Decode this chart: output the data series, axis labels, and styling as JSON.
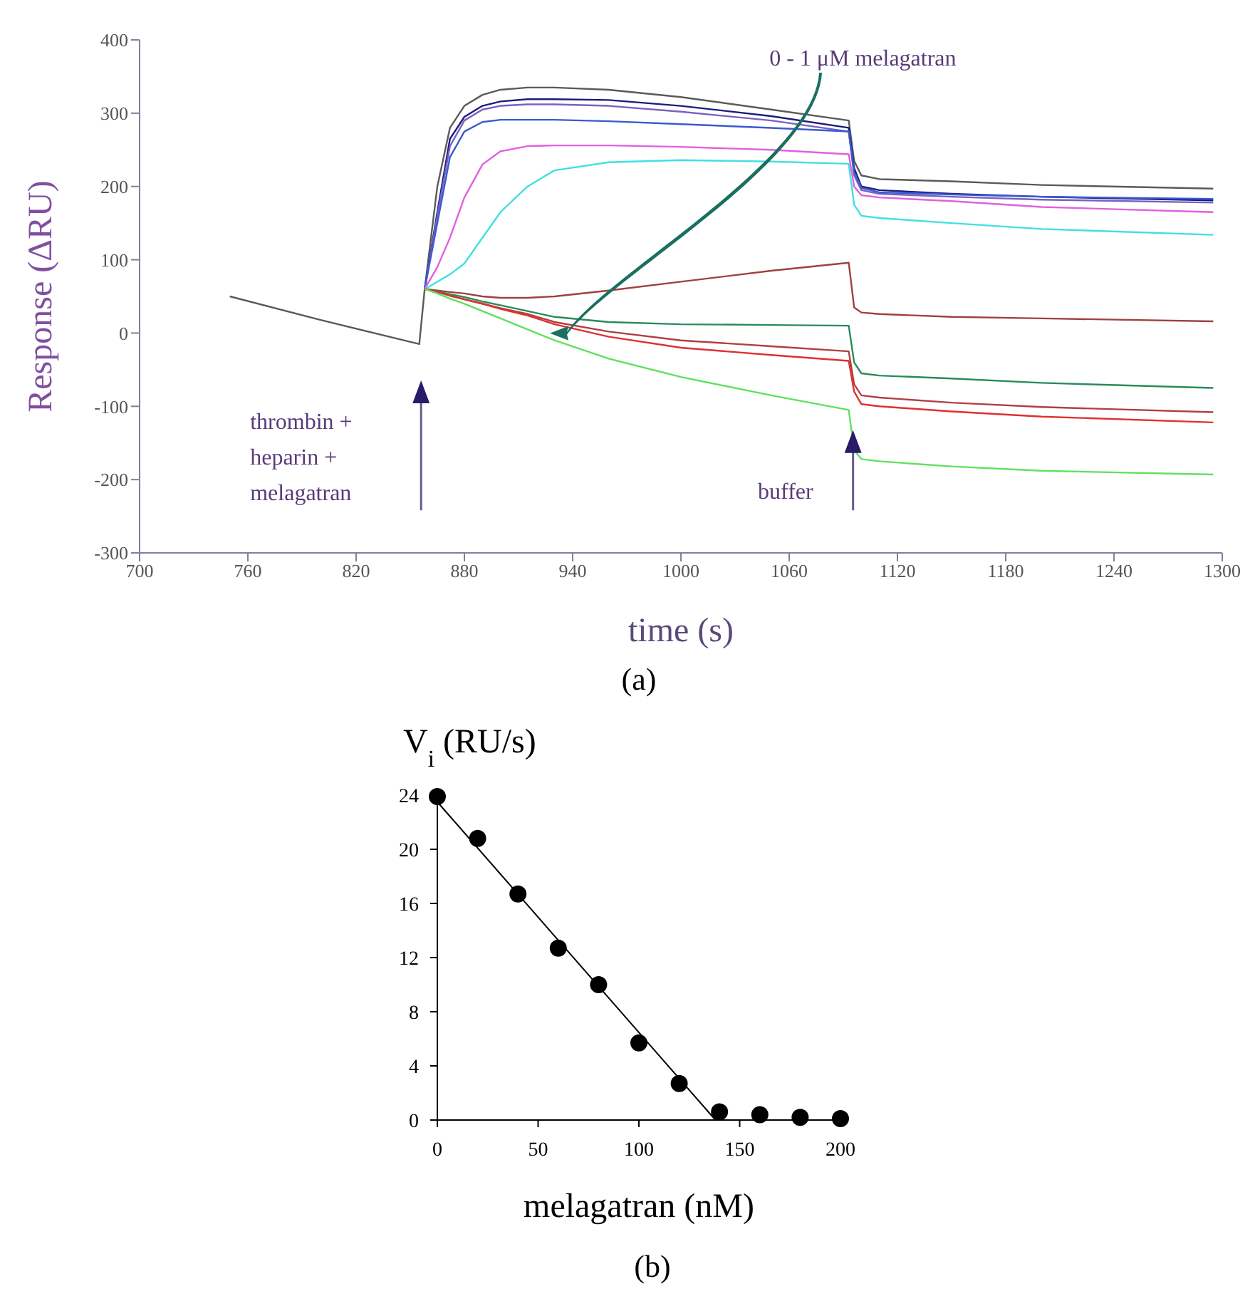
{
  "chart_data": [
    {
      "type": "line",
      "ylabel": "Response (ΔRU)",
      "xlabel": "time (s)",
      "xlim": [
        700,
        1300
      ],
      "xticks": [
        700,
        760,
        820,
        880,
        940,
        1000,
        1060,
        1120,
        1180,
        1240,
        1300
      ],
      "ylim": [
        -300,
        400
      ],
      "yticks": [
        -300,
        -200,
        -100,
        0,
        100,
        200,
        300,
        400
      ],
      "marker": "none",
      "x": [
        750,
        800,
        855,
        858,
        865,
        872,
        880,
        890,
        900,
        915,
        930,
        960,
        1000,
        1050,
        1093,
        1096,
        1100,
        1110,
        1150,
        1200,
        1295
      ],
      "series": [
        {
          "color": "#5a5a5a",
          "values": [
            50,
            18,
            -15,
            60,
            200,
            280,
            310,
            325,
            332,
            335,
            335,
            332,
            322,
            305,
            290,
            235,
            215,
            210,
            207,
            202,
            197
          ]
        },
        {
          "color": "#1a1a80",
          "values": [
            null,
            null,
            null,
            60,
            165,
            265,
            295,
            310,
            316,
            319,
            319,
            318,
            310,
            296,
            280,
            225,
            200,
            195,
            190,
            186,
            181
          ]
        },
        {
          "color": "#7a60c0",
          "values": [
            null,
            null,
            null,
            60,
            160,
            255,
            290,
            305,
            310,
            312,
            312,
            310,
            302,
            290,
            275,
            215,
            195,
            190,
            186,
            182,
            178
          ]
        },
        {
          "color": "#3a5ad0",
          "values": [
            null,
            null,
            null,
            60,
            150,
            240,
            275,
            288,
            291,
            291,
            291,
            289,
            285,
            280,
            275,
            220,
            198,
            192,
            189,
            186,
            183
          ]
        },
        {
          "color": "#e060e0",
          "values": [
            null,
            null,
            null,
            60,
            90,
            130,
            185,
            230,
            248,
            255,
            256,
            256,
            254,
            250,
            244,
            200,
            188,
            185,
            180,
            172,
            165
          ]
        },
        {
          "color": "#40e0e0",
          "values": [
            null,
            null,
            null,
            60,
            70,
            80,
            95,
            130,
            165,
            200,
            222,
            233,
            236,
            234,
            231,
            175,
            160,
            157,
            150,
            142,
            134
          ]
        },
        {
          "color": "#a04040",
          "values": [
            null,
            null,
            null,
            60,
            58,
            56,
            54,
            50,
            48,
            48,
            50,
            58,
            70,
            85,
            96,
            35,
            28,
            26,
            22,
            20,
            16
          ]
        },
        {
          "color": "#2a8a5a",
          "values": [
            null,
            null,
            null,
            60,
            57,
            53,
            49,
            43,
            38,
            30,
            22,
            15,
            12,
            11,
            10,
            -40,
            -55,
            -58,
            -62,
            -68,
            -75
          ]
        },
        {
          "color": "#b04040",
          "values": [
            null,
            null,
            null,
            60,
            56,
            51,
            46,
            40,
            34,
            26,
            15,
            2,
            -10,
            -18,
            -25,
            -70,
            -85,
            -88,
            -95,
            -101,
            -108
          ]
        },
        {
          "color": "#e03030",
          "values": [
            null,
            null,
            null,
            60,
            56,
            51,
            46,
            40,
            33,
            24,
            12,
            -5,
            -20,
            -30,
            -38,
            -80,
            -97,
            -100,
            -107,
            -114,
            -122
          ]
        },
        {
          "color": "#60e060",
          "values": [
            null,
            null,
            null,
            60,
            54,
            47,
            40,
            30,
            20,
            5,
            -10,
            -35,
            -60,
            -85,
            -105,
            -160,
            -172,
            -175,
            -182,
            -188,
            -193
          ]
        }
      ],
      "annotations": [
        "0 - 1 μM  melagatran",
        "thrombin + heparin + melagatran",
        "buffer",
        "(a)"
      ]
    },
    {
      "type": "scatter",
      "ylabel": "V$_{i}$ (RU/s)",
      "xlabel": "melagatran (nM)",
      "xlim": [
        0,
        200
      ],
      "xticks": [
        0,
        50,
        100,
        150,
        200
      ],
      "ylim": [
        0,
        24
      ],
      "yticks": [
        0,
        4,
        8,
        12,
        16,
        20,
        24
      ],
      "marker": "circle",
      "series": [
        {
          "type": "scatter",
          "color": "#000000",
          "x": [
            0,
            20,
            40,
            60,
            80,
            100,
            120,
            140,
            160,
            180,
            200
          ],
          "values": [
            23.9,
            20.8,
            16.7,
            12.7,
            10,
            5.7,
            2.7,
            0.6,
            0.4,
            0.2,
            0.1
          ]
        },
        {
          "type": "line",
          "color": "#000000",
          "marker": "none",
          "x": [
            0,
            138
          ],
          "values": [
            23.5,
            0
          ]
        }
      ],
      "annotations": [
        "(b)"
      ]
    }
  ]
}
